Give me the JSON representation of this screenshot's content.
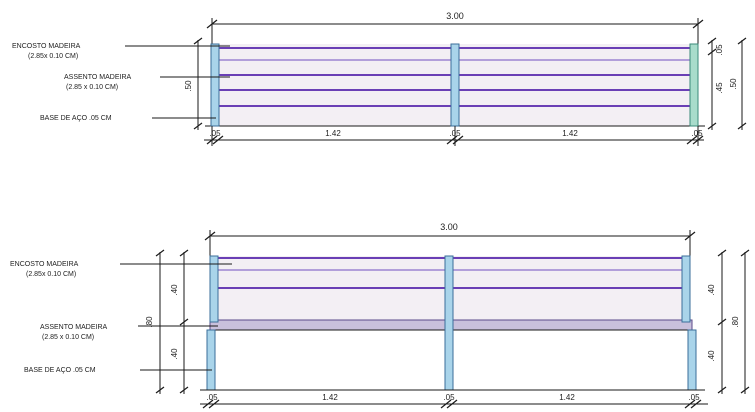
{
  "elevation_top": {
    "labels": {
      "encosto_line1": "ENCOSTO MADEIRA",
      "encosto_line2": "(2.85x 0.10 CM)",
      "assento_line1": "ASSENTO MADEIRA",
      "assento_line2": "(2.85 x 0.10 CM)",
      "base": "BASE DE AÇO .05 CM"
    },
    "dims": {
      "overall": "3.00",
      "gap_left": ".05",
      "span_left": "1.42",
      "gap_mid": ".05",
      "span_right": "1.42",
      "gap_right": ".05",
      "left_height": ".50",
      "right_top": ".05",
      "right_mid": ".45",
      "right_total": ".50"
    }
  },
  "elevation_bottom": {
    "labels": {
      "encosto_line1": "ENCOSTO MADEIRA",
      "encosto_line2": "(2.85x 0.10 CM)",
      "assento_line1": "ASSENTO MADEIRA",
      "assento_line2": "(2.85 x 0.10 CM)",
      "base": "BASE DE AÇO .05 CM"
    },
    "dims": {
      "overall": "3.00",
      "gap_left": ".05",
      "span_left": "1.42",
      "gap_mid": ".05",
      "span_right": "1.42",
      "gap_right": ".05",
      "left_upper": ".40",
      "left_lower": ".40",
      "left_mid": ".80",
      "right_upper": ".40",
      "right_lower": ".40",
      "right_total": ".80"
    }
  },
  "colors": {
    "plank": "#6a3fb5",
    "post": "#a9d4ea",
    "wood": "#f3eff4"
  }
}
